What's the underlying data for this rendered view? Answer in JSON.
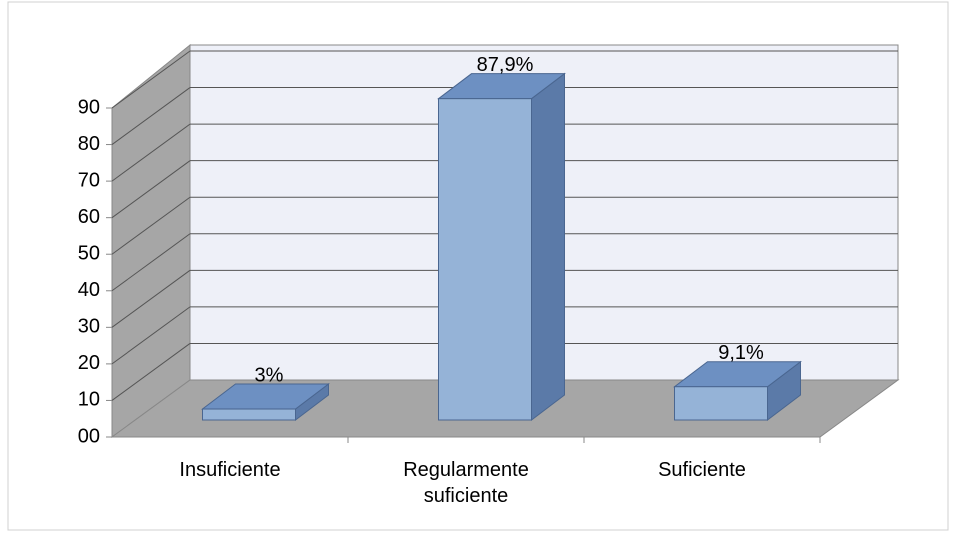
{
  "chart_data": {
    "type": "bar3d",
    "categories": [
      "Insuficiente",
      "Regularmente suficiente",
      "Suficiente"
    ],
    "values": [
      3,
      87.9,
      9.1
    ],
    "value_labels": [
      "3%",
      "87,9%",
      "9,1%"
    ],
    "color": "#95b3d7",
    "ylim": [
      0,
      90
    ],
    "yticks": [
      {
        "value": 0,
        "label": "00"
      },
      10,
      20,
      30,
      40,
      50,
      60,
      70,
      80,
      90
    ],
    "grid": true
  }
}
